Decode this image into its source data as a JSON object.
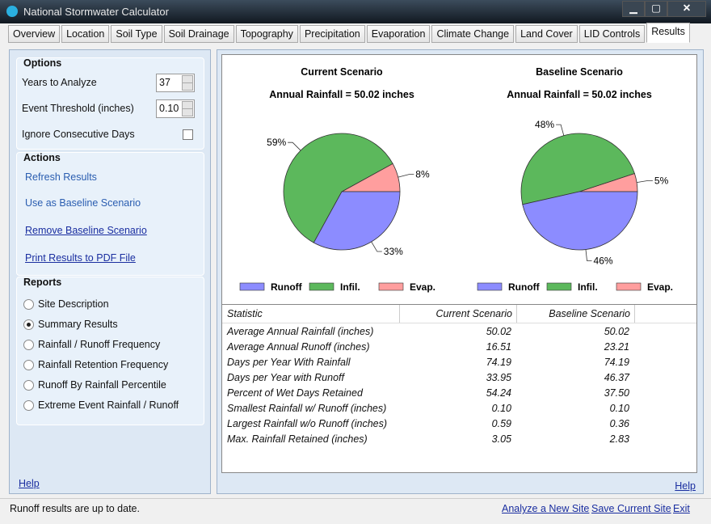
{
  "window": {
    "title": "National Stormwater Calculator"
  },
  "tabs": [
    "Overview",
    "Location",
    "Soil Type",
    "Soil Drainage",
    "Topography",
    "Precipitation",
    "Evaporation",
    "Climate Change",
    "Land Cover",
    "LID Controls",
    "Results"
  ],
  "options": {
    "title": "Options",
    "fields": [
      {
        "label": "Years to Analyze",
        "value": "37"
      },
      {
        "label": "Event Threshold (inches)",
        "value": "0.10"
      },
      {
        "label": "Ignore Consecutive Days",
        "checked": false
      }
    ]
  },
  "actions": {
    "title": "Actions",
    "links": [
      "Refresh Results",
      "Use as Baseline Scenario",
      "Remove Baseline Scenario",
      "Print Results to PDF File"
    ]
  },
  "reports": {
    "title": "Reports",
    "items": [
      "Site Description",
      "Summary Results",
      "Rainfall / Runoff Frequency",
      "Rainfall Retention Frequency",
      "Runoff By Rainfall Percentile",
      "Extreme Event Rainfall / Runoff"
    ],
    "selected": 1
  },
  "left_help": "Help",
  "chart_data": [
    {
      "type": "pie",
      "title": "Current Scenario",
      "subtitle": "Annual Rainfall = 50.02 inches",
      "categories": [
        "Runoff",
        "Infil.",
        "Evap."
      ],
      "values": [
        33,
        59,
        8
      ],
      "value_labels": [
        "33%",
        "59%",
        "8%"
      ],
      "colors": [
        "#8c8cff",
        "#5cb85c",
        "#ff9e9e"
      ]
    },
    {
      "type": "pie",
      "title": "Baseline Scenario",
      "subtitle": "Annual Rainfall = 50.02 inches",
      "categories": [
        "Runoff",
        "Infil.",
        "Evap."
      ],
      "values": [
        46,
        48,
        5
      ],
      "value_labels": [
        "46%",
        "48%",
        "5%"
      ],
      "colors": [
        "#8c8cff",
        "#5cb85c",
        "#ff9e9e"
      ]
    }
  ],
  "table": {
    "header": [
      "Statistic",
      "Current Scenario",
      "Baseline Scenario"
    ],
    "rows": [
      [
        "Average Annual Rainfall (inches)",
        "50.02",
        "50.02"
      ],
      [
        "Average Annual Runoff (inches)",
        "16.51",
        "23.21"
      ],
      [
        "Days per Year With Rainfall",
        "74.19",
        "74.19"
      ],
      [
        "Days per Year with Runoff",
        "33.95",
        "46.37"
      ],
      [
        "Percent of Wet Days Retained",
        "54.24",
        "37.50"
      ],
      [
        "Smallest Rainfall w/ Runoff (inches)",
        "0.10",
        "0.10"
      ],
      [
        "Largest Rainfall w/o Runoff (inches)",
        "0.59",
        "0.36"
      ],
      [
        "Max. Rainfall Retained (inches)",
        "3.05",
        "2.83"
      ]
    ]
  },
  "right_help": "Help",
  "status": {
    "text": "Runoff results are up to date.",
    "links": [
      "Analyze a New Site",
      "Save Current Site",
      "Exit"
    ]
  }
}
